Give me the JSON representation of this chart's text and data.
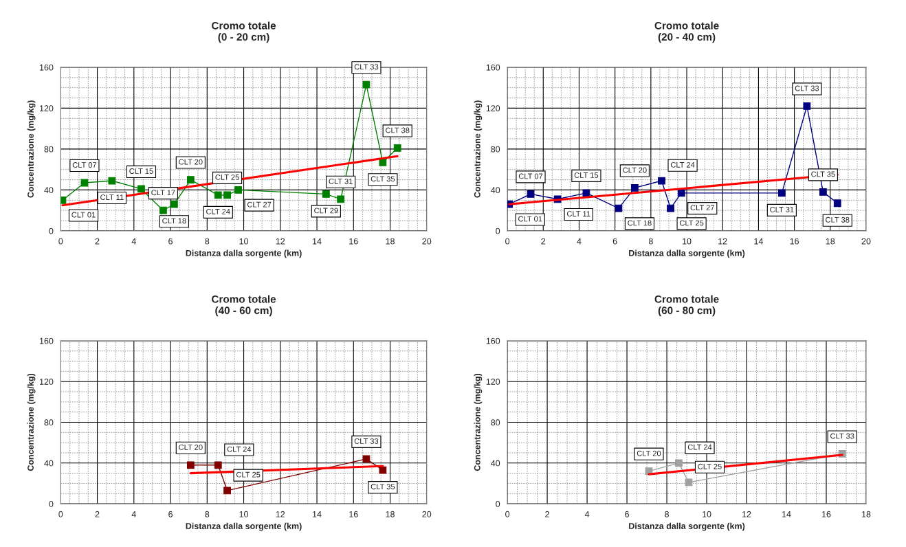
{
  "chart_data": [
    {
      "type": "line",
      "title": "Cromo totale\n(0 - 20 cm)",
      "xlabel": "Distanza dalla sorgente (km)",
      "ylabel": "Concentrazione (mg/kg)",
      "xlim": [
        0,
        20
      ],
      "xticks": [
        0,
        2,
        4,
        6,
        8,
        10,
        12,
        14,
        16,
        18,
        20
      ],
      "ylim": [
        0,
        160
      ],
      "yticks": [
        0,
        40,
        80,
        120,
        160
      ],
      "grid": true,
      "legend": false,
      "marker": "square",
      "line_style": "solid",
      "series": [
        {
          "x": [
            0.1,
            1.3,
            2.8,
            4.4,
            5.6,
            6.2,
            7.1,
            8.6,
            9.1,
            9.7,
            14.5,
            15.3,
            16.7,
            17.6,
            18.4
          ],
          "values": [
            30,
            47,
            49,
            41,
            20,
            26,
            50,
            35,
            35,
            40,
            36,
            31,
            143,
            67,
            81
          ],
          "color": "#008000"
        },
        {
          "type": "line",
          "marker": "none",
          "x": [
            0.1,
            18.4
          ],
          "values": [
            25,
            73
          ],
          "color": "#ff0000"
        }
      ],
      "annotations": [
        {
          "text": "CLT 01",
          "x": 0.1,
          "y": 30
        },
        {
          "text": "CLT 07",
          "x": 1.3,
          "y": 47
        },
        {
          "text": "CLT 11",
          "x": 2.8,
          "y": 49
        },
        {
          "text": "CLT 15",
          "x": 4.4,
          "y": 41
        },
        {
          "text": "CLT 17",
          "x": 5.6,
          "y": 20
        },
        {
          "text": "CLT 18",
          "x": 6.2,
          "y": 26
        },
        {
          "text": "CLT 20",
          "x": 7.1,
          "y": 50
        },
        {
          "text": "CLT 24",
          "x": 8.6,
          "y": 35
        },
        {
          "text": "CLT 25",
          "x": 9.1,
          "y": 35
        },
        {
          "text": "CLT 27",
          "x": 9.7,
          "y": 40
        },
        {
          "text": "CLT 29",
          "x": 14.5,
          "y": 36
        },
        {
          "text": "CLT 31",
          "x": 15.3,
          "y": 31
        },
        {
          "text": "CLT 33",
          "x": 16.7,
          "y": 143
        },
        {
          "text": "CLT 35",
          "x": 17.6,
          "y": 67
        },
        {
          "text": "CLT 38",
          "x": 18.4,
          "y": 81
        }
      ]
    },
    {
      "type": "line",
      "title": "Cromo totale\n(20 - 40 cm)",
      "xlabel": "Distanza dalla sorgente (km)",
      "ylabel": "Concentrazione (mg/kg)",
      "xlim": [
        0,
        20
      ],
      "xticks": [
        0,
        2,
        4,
        6,
        8,
        10,
        12,
        14,
        16,
        18,
        20
      ],
      "ylim": [
        0,
        160
      ],
      "yticks": [
        0,
        40,
        80,
        120,
        160
      ],
      "grid": true,
      "legend": false,
      "marker": "square",
      "line_style": "solid",
      "series": [
        {
          "x": [
            0.1,
            1.3,
            2.8,
            4.4,
            6.2,
            7.1,
            8.6,
            9.1,
            9.7,
            15.3,
            16.7,
            17.6,
            18.4
          ],
          "values": [
            26,
            36,
            31,
            37,
            22,
            42,
            49,
            22,
            37,
            37,
            122,
            38,
            27
          ],
          "color": "#000080"
        },
        {
          "type": "line",
          "marker": "none",
          "x": [
            0.1,
            18.4
          ],
          "values": [
            26,
            55
          ],
          "color": "#ff0000"
        }
      ],
      "annotations": [
        {
          "text": "CLT 01",
          "x": 0.1,
          "y": 26
        },
        {
          "text": "CLT 07",
          "x": 1.3,
          "y": 36
        },
        {
          "text": "CLT 11",
          "x": 2.8,
          "y": 31
        },
        {
          "text": "CLT 15",
          "x": 4.4,
          "y": 37
        },
        {
          "text": "CLT 18",
          "x": 6.2,
          "y": 22
        },
        {
          "text": "CLT 20",
          "x": 7.1,
          "y": 42
        },
        {
          "text": "CLT 24",
          "x": 8.6,
          "y": 49
        },
        {
          "text": "CLT 25",
          "x": 9.1,
          "y": 22
        },
        {
          "text": "CLT 27",
          "x": 9.7,
          "y": 37
        },
        {
          "text": "CLT 31",
          "x": 15.3,
          "y": 37
        },
        {
          "text": "CLT 33",
          "x": 16.7,
          "y": 122
        },
        {
          "text": "CLT 35",
          "x": 17.6,
          "y": 38
        },
        {
          "text": "CLT 38",
          "x": 18.4,
          "y": 27
        }
      ]
    },
    {
      "type": "line",
      "title": "Cromo totale\n(40 - 60 cm)",
      "xlabel": "Distanza dalla sorgente (km)",
      "ylabel": "Concentrazione (mg/kg)",
      "xlim": [
        0,
        20
      ],
      "xticks": [
        0,
        2,
        4,
        6,
        8,
        10,
        12,
        14,
        16,
        18,
        20
      ],
      "ylim": [
        0,
        160
      ],
      "yticks": [
        0,
        40,
        80,
        120,
        160
      ],
      "grid": true,
      "legend": false,
      "marker": "square",
      "line_style": "solid",
      "series": [
        {
          "x": [
            7.1,
            8.6,
            9.1,
            16.7,
            17.6
          ],
          "values": [
            38,
            38,
            13,
            44,
            33
          ],
          "color": "#800000"
        },
        {
          "type": "line",
          "marker": "none",
          "x": [
            7.1,
            17.6
          ],
          "values": [
            30,
            37
          ],
          "color": "#ff0000"
        }
      ],
      "annotations": [
        {
          "text": "CLT 20",
          "x": 7.1,
          "y": 38
        },
        {
          "text": "CLT 24",
          "x": 8.6,
          "y": 38
        },
        {
          "text": "CLT 25",
          "x": 9.1,
          "y": 13
        },
        {
          "text": "CLT 33",
          "x": 16.7,
          "y": 44
        },
        {
          "text": "CLT 35",
          "x": 17.6,
          "y": 33
        }
      ]
    },
    {
      "type": "line",
      "title": "Cromo totale\n(60 - 80 cm)",
      "xlabel": "Distanza dalla sorgente (km)",
      "ylabel": "Concentrazione (mg/kg)",
      "xlim": [
        0,
        18
      ],
      "xticks": [
        0,
        2,
        4,
        6,
        8,
        10,
        12,
        14,
        16,
        18
      ],
      "ylim": [
        0,
        160
      ],
      "yticks": [
        0,
        40,
        80,
        120,
        160
      ],
      "grid": true,
      "legend": false,
      "marker": "square",
      "line_style": "solid",
      "series": [
        {
          "x": [
            7.1,
            8.6,
            9.1,
            16.8
          ],
          "values": [
            32,
            40,
            21,
            49
          ],
          "color": "#a0a0a0"
        },
        {
          "type": "line",
          "marker": "none",
          "x": [
            7.1,
            16.8
          ],
          "values": [
            29,
            48
          ],
          "color": "#ff0000"
        }
      ],
      "annotations": [
        {
          "text": "CLT 20",
          "x": 7.1,
          "y": 32
        },
        {
          "text": "CLT 24",
          "x": 8.6,
          "y": 40
        },
        {
          "text": "CLT 25",
          "x": 9.1,
          "y": 21
        },
        {
          "text": "CLT 33",
          "x": 16.8,
          "y": 49
        }
      ]
    }
  ]
}
